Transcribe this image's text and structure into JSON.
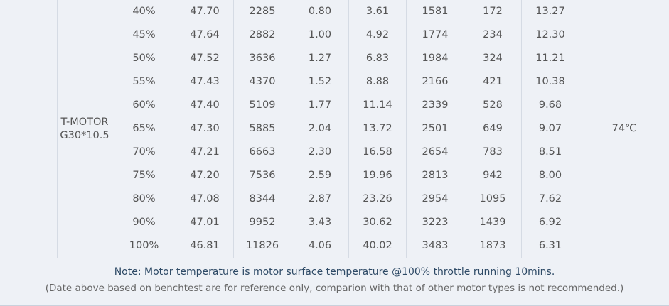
{
  "table": {
    "prop": "T-MOTOR G30*10.5",
    "temperature": "74℃",
    "rows": [
      [
        "40%",
        "47.70",
        "2285",
        "0.80",
        "3.61",
        "1581",
        "172",
        "13.27"
      ],
      [
        "45%",
        "47.64",
        "2882",
        "1.00",
        "4.92",
        "1774",
        "234",
        "12.30"
      ],
      [
        "50%",
        "47.52",
        "3636",
        "1.27",
        "6.83",
        "1984",
        "324",
        "11.21"
      ],
      [
        "55%",
        "47.43",
        "4370",
        "1.52",
        "8.88",
        "2166",
        "421",
        "10.38"
      ],
      [
        "60%",
        "47.40",
        "5109",
        "1.77",
        "11.14",
        "2339",
        "528",
        "9.68"
      ],
      [
        "65%",
        "47.30",
        "5885",
        "2.04",
        "13.72",
        "2501",
        "649",
        "9.07"
      ],
      [
        "70%",
        "47.21",
        "6663",
        "2.30",
        "16.58",
        "2654",
        "783",
        "8.51"
      ],
      [
        "75%",
        "47.20",
        "7536",
        "2.59",
        "19.96",
        "2813",
        "942",
        "8.00"
      ],
      [
        "80%",
        "47.08",
        "8344",
        "2.87",
        "23.26",
        "2954",
        "1095",
        "7.62"
      ],
      [
        "90%",
        "47.01",
        "9952",
        "3.43",
        "30.62",
        "3223",
        "1439",
        "6.92"
      ],
      [
        "100%",
        "46.81",
        "11826",
        "4.06",
        "40.02",
        "3483",
        "1873",
        "6.31"
      ]
    ]
  },
  "notes": [
    "Note: Motor temperature is motor surface temperature @100% throttle running 10mins.",
    "(Date above based on benchtest are for reference only, comparion with that of other motor types is not recommended.)"
  ]
}
